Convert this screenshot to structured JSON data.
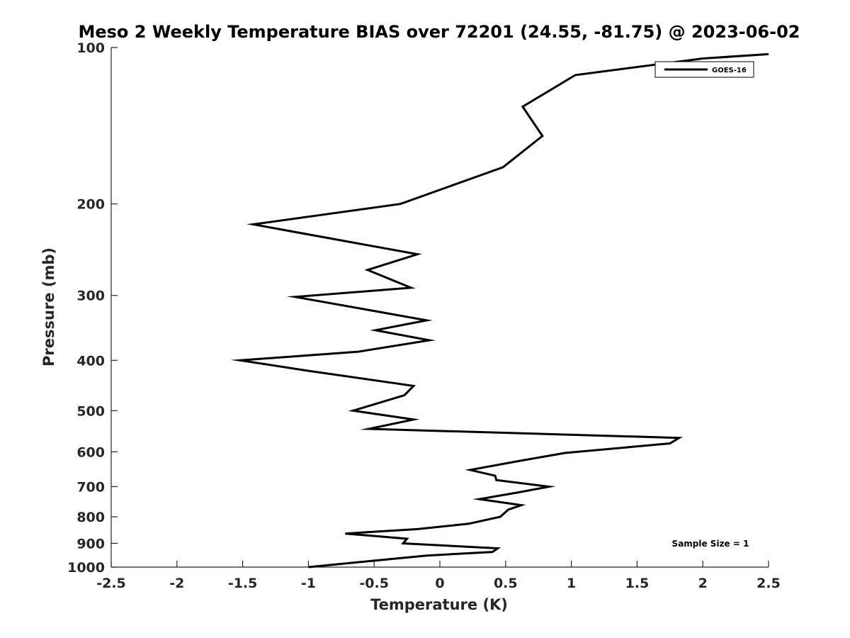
{
  "chart_data": {
    "type": "line",
    "title": "Meso 2 Weekly Temperature BIAS over 72201 (24.55, -81.75) @ 2023-06-02",
    "xlabel": "Temperature (K)",
    "ylabel": "Pressure (mb)",
    "xlim": [
      -2.5,
      2.5
    ],
    "ylim": [
      100,
      1000
    ],
    "y_scale": "log",
    "y_reversed": true,
    "grid": false,
    "x_ticks": [
      "-2.5",
      "-2",
      "-1.5",
      "-1",
      "-0.5",
      "0",
      "0.5",
      "1",
      "1.5",
      "2",
      "2.5"
    ],
    "y_ticks": [
      "100",
      "200",
      "300",
      "400",
      "500",
      "600",
      "700",
      "800",
      "900",
      "1000"
    ],
    "legend": {
      "position": "top-right",
      "entries": [
        "GOES-16"
      ]
    },
    "annotation": "Sample Size = 1",
    "series": [
      {
        "name": "GOES-16",
        "color": "#000000",
        "points": [
          {
            "x": 2.5,
            "y": 103
          },
          {
            "x": 2.0,
            "y": 105
          },
          {
            "x": 1.03,
            "y": 113
          },
          {
            "x": 0.63,
            "y": 130
          },
          {
            "x": 0.78,
            "y": 148
          },
          {
            "x": 0.48,
            "y": 170
          },
          {
            "x": -0.3,
            "y": 200
          },
          {
            "x": -1.42,
            "y": 219
          },
          {
            "x": -0.17,
            "y": 250
          },
          {
            "x": -0.55,
            "y": 268
          },
          {
            "x": -0.22,
            "y": 290
          },
          {
            "x": -1.1,
            "y": 302
          },
          {
            "x": -0.1,
            "y": 335
          },
          {
            "x": -0.49,
            "y": 350
          },
          {
            "x": -0.08,
            "y": 366
          },
          {
            "x": -0.62,
            "y": 385
          },
          {
            "x": -1.52,
            "y": 400
          },
          {
            "x": -1.0,
            "y": 419
          },
          {
            "x": -0.2,
            "y": 448
          },
          {
            "x": -0.27,
            "y": 467
          },
          {
            "x": -0.66,
            "y": 500
          },
          {
            "x": -0.2,
            "y": 520
          },
          {
            "x": -0.54,
            "y": 542
          },
          {
            "x": 1.82,
            "y": 564
          },
          {
            "x": 1.75,
            "y": 578
          },
          {
            "x": 0.95,
            "y": 603
          },
          {
            "x": 0.6,
            "y": 625
          },
          {
            "x": 0.23,
            "y": 650
          },
          {
            "x": 0.42,
            "y": 667
          },
          {
            "x": 0.43,
            "y": 680
          },
          {
            "x": 0.83,
            "y": 700
          },
          {
            "x": 0.6,
            "y": 718
          },
          {
            "x": 0.3,
            "y": 740
          },
          {
            "x": 0.62,
            "y": 760
          },
          {
            "x": 0.52,
            "y": 775
          },
          {
            "x": 0.46,
            "y": 800
          },
          {
            "x": 0.22,
            "y": 825
          },
          {
            "x": -0.17,
            "y": 845
          },
          {
            "x": -0.72,
            "y": 862
          },
          {
            "x": -0.25,
            "y": 882
          },
          {
            "x": -0.28,
            "y": 900
          },
          {
            "x": 0.44,
            "y": 920
          },
          {
            "x": 0.4,
            "y": 935
          },
          {
            "x": -0.1,
            "y": 950
          },
          {
            "x": -0.38,
            "y": 965
          },
          {
            "x": -1.0,
            "y": 1000
          }
        ]
      }
    ]
  }
}
